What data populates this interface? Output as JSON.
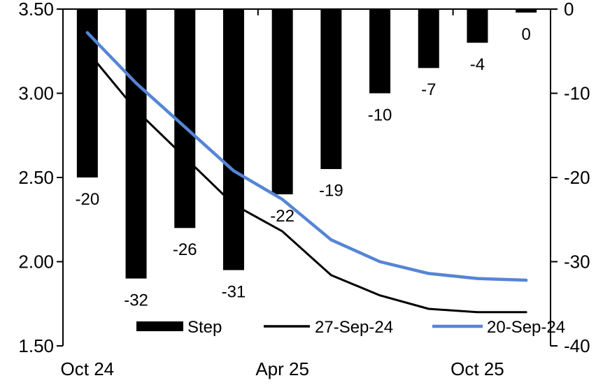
{
  "chart_data": {
    "type": "bar",
    "subtype": "combo-bar-line",
    "title": "",
    "meeting_slots": 10,
    "x_tick_labels": [
      {
        "slot_index": 0,
        "label": "Oct 24"
      },
      {
        "slot_index": 4,
        "label": "Apr 25"
      },
      {
        "slot_index": 8,
        "label": "Oct 25"
      }
    ],
    "bar_series": {
      "name": "Step",
      "axis": "right",
      "color": "#000000",
      "values": [
        -20,
        -32,
        -26,
        -31,
        -22,
        -19,
        -10,
        -7,
        -4,
        0
      ],
      "data_labels": [
        "-20",
        "-32",
        "-26",
        "-31",
        "-22",
        "-19",
        "-10",
        "-7",
        "-4",
        "0"
      ]
    },
    "line_series": [
      {
        "name": "27-Sep-24",
        "axis": "left",
        "color": "#000000",
        "stroke_width": 3,
        "values": [
          3.25,
          2.9,
          2.62,
          2.34,
          2.18,
          1.92,
          1.8,
          1.72,
          1.7,
          1.7
        ]
      },
      {
        "name": "20-Sep-24",
        "axis": "left",
        "color": "#5585D5",
        "stroke_width": 4.5,
        "values": [
          3.36,
          3.06,
          2.8,
          2.54,
          2.37,
          2.13,
          2.0,
          1.93,
          1.9,
          1.89
        ]
      }
    ],
    "left_axis": {
      "min": 1.5,
      "max": 3.5,
      "tick_values": [
        3.5,
        3.0,
        2.5,
        2.0,
        1.5
      ],
      "tick_labels": [
        "3.50",
        "3.00",
        "2.50",
        "2.00",
        "1.50"
      ]
    },
    "right_axis": {
      "min": -40,
      "max": 0,
      "tick_values": [
        0,
        -10,
        -20,
        -30,
        -40
      ],
      "tick_labels": [
        "0",
        "-10",
        "-20",
        "-30",
        "-40"
      ]
    },
    "legend": {
      "position": "bottom-inside",
      "items": [
        {
          "label": "Step",
          "swatch": "bar",
          "color": "#000000"
        },
        {
          "label": "27-Sep-24",
          "swatch": "line",
          "color": "#000000"
        },
        {
          "label": "20-Sep-24",
          "swatch": "line",
          "color": "#5585D5"
        }
      ]
    },
    "grid": "off",
    "background_color": "#FFFFFF",
    "axis_color": "#000000"
  }
}
